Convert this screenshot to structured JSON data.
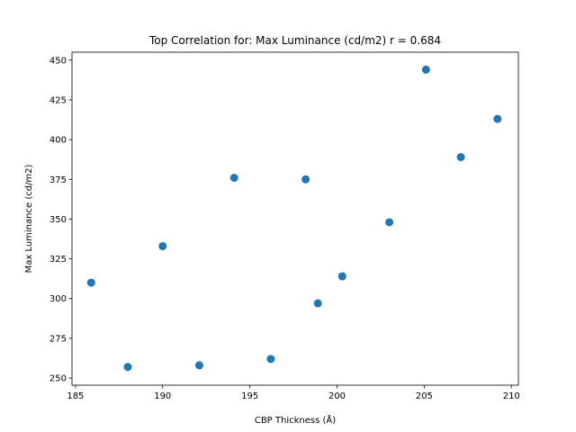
{
  "chart_data": {
    "type": "scatter",
    "title": "Top Correlation for: Max Luminance (cd/m2) r = 0.684",
    "xlabel": "CBP Thickness (Å)",
    "ylabel": "Max Luminance (cd/m2)",
    "xlim": [
      184.8,
      210.4
    ],
    "ylim": [
      245.5,
      455.0
    ],
    "xticks": [
      185,
      190,
      195,
      200,
      205,
      210
    ],
    "yticks": [
      250,
      275,
      300,
      325,
      350,
      375,
      400,
      425,
      450
    ],
    "grid": false,
    "point_color": "#1f77b4",
    "points": [
      {
        "x": 185.9,
        "y": 310
      },
      {
        "x": 188.0,
        "y": 257
      },
      {
        "x": 190.0,
        "y": 333
      },
      {
        "x": 192.1,
        "y": 258
      },
      {
        "x": 194.1,
        "y": 376
      },
      {
        "x": 196.2,
        "y": 262
      },
      {
        "x": 198.2,
        "y": 375
      },
      {
        "x": 198.9,
        "y": 297
      },
      {
        "x": 200.3,
        "y": 314
      },
      {
        "x": 203.0,
        "y": 348
      },
      {
        "x": 205.1,
        "y": 444
      },
      {
        "x": 207.1,
        "y": 389
      },
      {
        "x": 209.2,
        "y": 413
      }
    ]
  }
}
